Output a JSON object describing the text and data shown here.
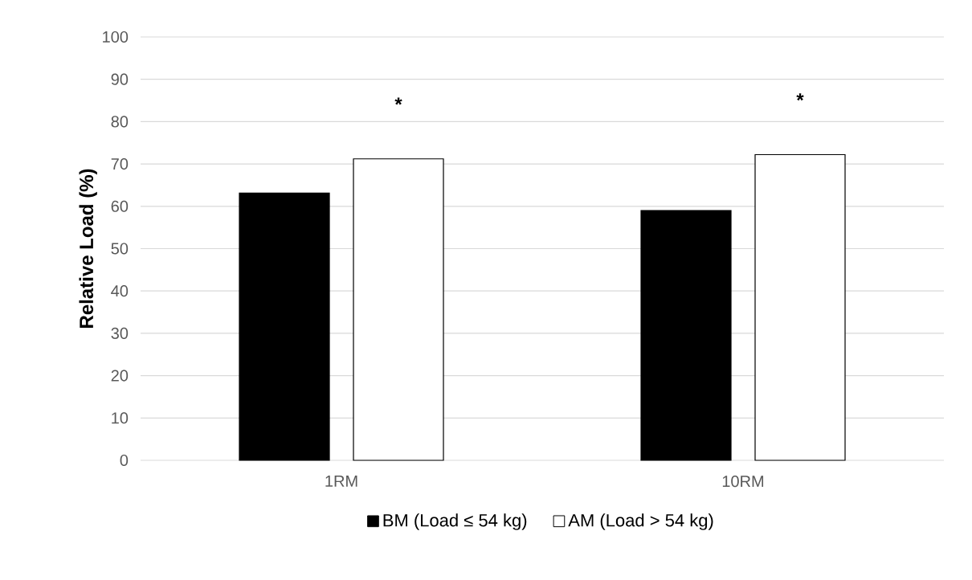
{
  "chart_data": {
    "type": "bar",
    "ylabel": "Relative Load (%)",
    "categories": [
      "1RM",
      "10RM"
    ],
    "series": [
      {
        "name": "BM (Load ≤ 54 kg)",
        "color": "#000000",
        "values": [
          63.1,
          59.0
        ]
      },
      {
        "name": "AM (Load > 54 kg)",
        "color": "#ffffff",
        "values": [
          71.2,
          72.2
        ]
      }
    ],
    "ylim": [
      0,
      100
    ],
    "yticks": [
      0,
      10,
      20,
      30,
      40,
      50,
      60,
      70,
      80,
      90,
      100
    ],
    "grid": "y",
    "legend": "bottom",
    "annotations": [
      "*",
      "*"
    ]
  }
}
